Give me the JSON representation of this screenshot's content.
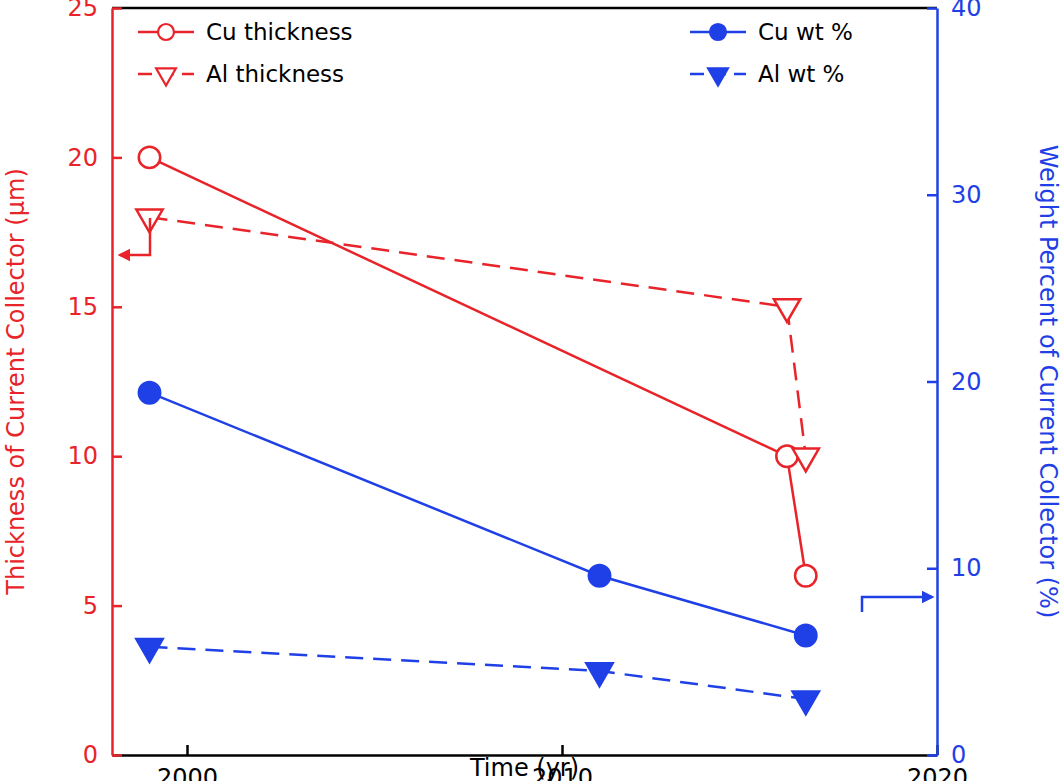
{
  "chart_data": {
    "type": "line",
    "xlabel": "Time (yr)",
    "ylabel": "Thickness of Current Collector (µm)",
    "y2label": "Weight Percent of Current Collector (%)",
    "xlim": [
      1998,
      2020
    ],
    "xticks": [
      2000,
      2010,
      2020
    ],
    "ylim": [
      0,
      25
    ],
    "yticks": [
      0,
      5,
      10,
      15,
      20,
      25
    ],
    "y2lim": [
      0,
      40
    ],
    "y2ticks": [
      0,
      10,
      20,
      30,
      40
    ],
    "grid": false,
    "legend": "top",
    "series": [
      {
        "name": "Cu thickness",
        "color": "#e8242a",
        "marker": "circle-open",
        "line_style": "solid",
        "x": [
          1999,
          2016,
          2016.5
        ],
        "values": [
          20,
          10,
          6
        ]
      },
      {
        "name": "Al thickness",
        "color": "#e8242a",
        "marker": "triangle-down-open",
        "line_style": "dashed",
        "x": [
          1999,
          2016,
          2016.5
        ],
        "values": [
          18,
          15,
          10
        ]
      },
      {
        "name": "Cu wt %",
        "color": "#1f40e6",
        "marker": "circle",
        "line_style": "solid",
        "axis": "y2",
        "x": [
          1999,
          2011,
          2016.5
        ],
        "values": [
          19.4,
          9.6,
          6.4
        ]
      },
      {
        "name": "Al wt %",
        "color": "#1f40e6",
        "marker": "triangle-down",
        "line_style": "dashed",
        "axis": "y2",
        "x": [
          1999,
          2011,
          2016.5
        ],
        "values": [
          5.8,
          4.5,
          3.0
        ]
      }
    ]
  }
}
